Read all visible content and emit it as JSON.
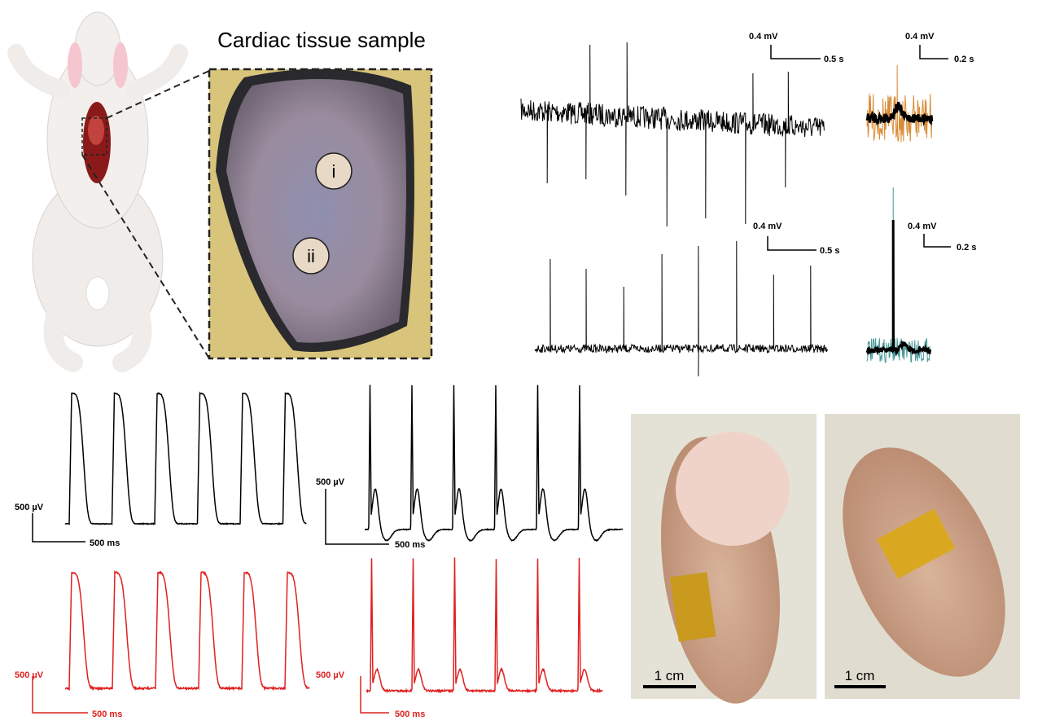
{
  "title": "Cardiac tissue sample",
  "markers": [
    "i",
    "ii"
  ],
  "ecg_scale_bars": [
    {
      "amplitude": "0.4 mV",
      "time": "0.5 s"
    },
    {
      "amplitude": "0.4 mV",
      "time": "0.2 s"
    },
    {
      "amplitude": "0.4 mV",
      "time": "0.5 s"
    },
    {
      "amplitude": "0.4 mV",
      "time": "0.2 s"
    }
  ],
  "ap_scale_bars": [
    {
      "amplitude": "500 µV",
      "time": "500 ms"
    },
    {
      "amplitude": "500 µV",
      "time": "500 ms"
    },
    {
      "amplitude": "500 µV",
      "time": "500 ms"
    },
    {
      "amplitude": "500 µV",
      "time": "500 ms"
    }
  ],
  "photo_scale_bars": [
    "1 cm",
    "1 cm"
  ]
}
